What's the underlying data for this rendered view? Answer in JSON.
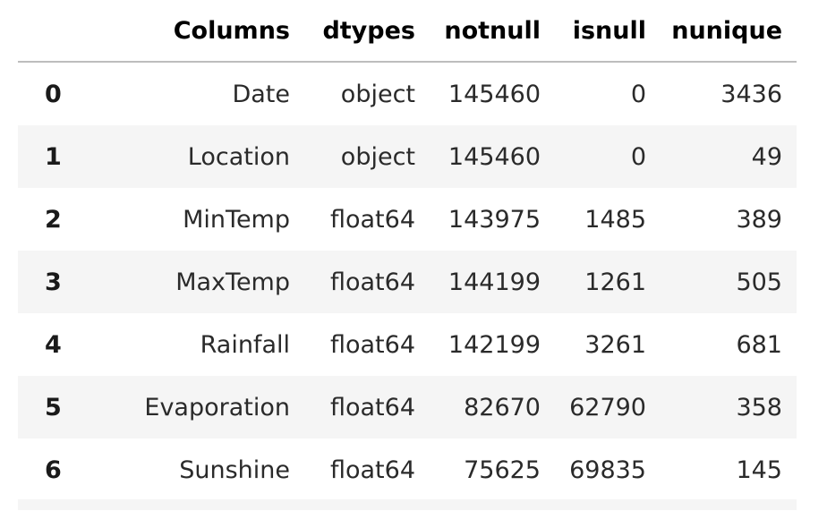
{
  "table": {
    "columns": [
      "",
      "Columns",
      "dtypes",
      "notnull",
      "isnull",
      "nunique"
    ],
    "rows": [
      {
        "index": "0",
        "Columns": "Date",
        "dtypes": "object",
        "notnull": "145460",
        "isnull": "0",
        "nunique": "3436"
      },
      {
        "index": "1",
        "Columns": "Location",
        "dtypes": "object",
        "notnull": "145460",
        "isnull": "0",
        "nunique": "49"
      },
      {
        "index": "2",
        "Columns": "MinTemp",
        "dtypes": "float64",
        "notnull": "143975",
        "isnull": "1485",
        "nunique": "389"
      },
      {
        "index": "3",
        "Columns": "MaxTemp",
        "dtypes": "float64",
        "notnull": "144199",
        "isnull": "1261",
        "nunique": "505"
      },
      {
        "index": "4",
        "Columns": "Rainfall",
        "dtypes": "float64",
        "notnull": "142199",
        "isnull": "3261",
        "nunique": "681"
      },
      {
        "index": "5",
        "Columns": "Evaporation",
        "dtypes": "float64",
        "notnull": "82670",
        "isnull": "62790",
        "nunique": "358"
      },
      {
        "index": "6",
        "Columns": "Sunshine",
        "dtypes": "float64",
        "notnull": "75625",
        "isnull": "69835",
        "nunique": "145"
      }
    ]
  }
}
